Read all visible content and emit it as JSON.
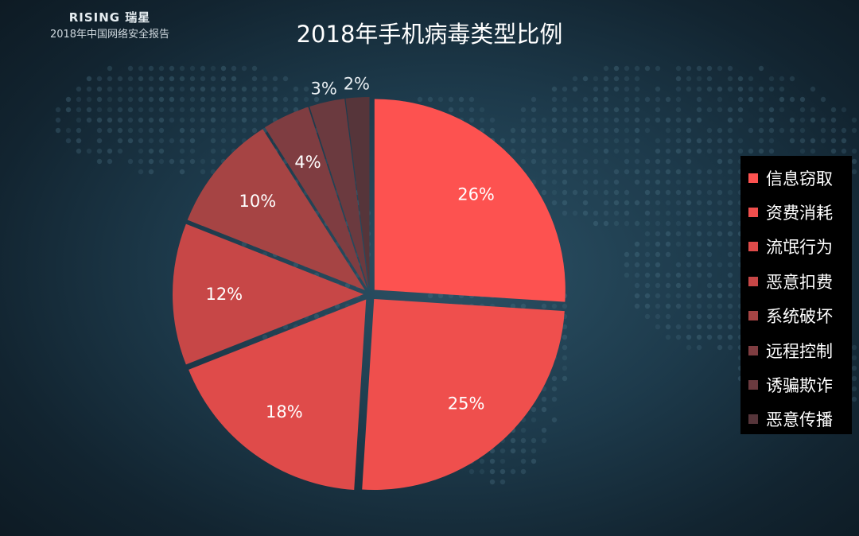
{
  "header": {
    "logo_text": "RISING 瑞星",
    "report_name": "2018年中国网络安全报告"
  },
  "chart_data": {
    "type": "pie",
    "title": "2018年手机病毒类型比例",
    "categories": [
      "信息窃取",
      "资费消耗",
      "流氓行为",
      "恶意扣费",
      "系统破坏",
      "远程控制",
      "诱骗欺诈",
      "恶意传播"
    ],
    "values": [
      26,
      25,
      18,
      12,
      10,
      4,
      3,
      2
    ],
    "value_labels": [
      "26%",
      "25%",
      "18%",
      "12%",
      "10%",
      "4%",
      "3%",
      "2%"
    ],
    "colors": [
      "#fd5250",
      "#ef4f4d",
      "#df4b4a",
      "#c74747",
      "#a64444",
      "#7f3d41",
      "#6b3a3f",
      "#56353a"
    ],
    "legend_position": "right",
    "exploded": true
  }
}
